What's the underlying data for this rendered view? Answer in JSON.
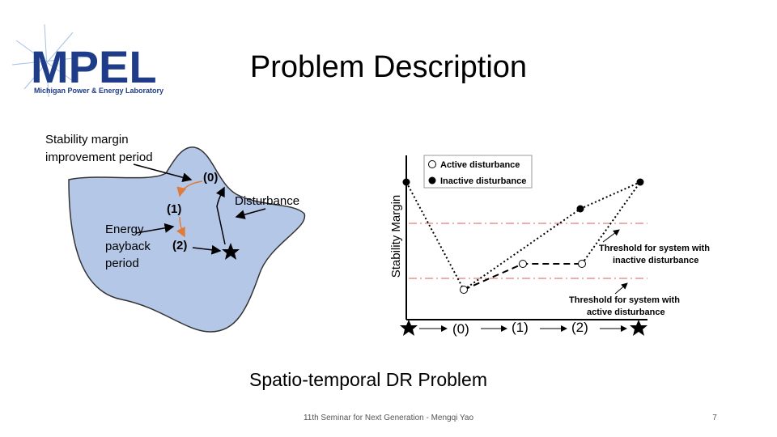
{
  "logo": {
    "name": "MPEL",
    "subtitle": "Michigan Power & Energy Laboratory"
  },
  "title": "Problem Description",
  "left_diagram": {
    "improvement_label": [
      "Stability margin",
      "improvement period"
    ],
    "states": [
      "(0)",
      "(1)",
      "(2)"
    ],
    "disturbance_label": "Disturbance",
    "payback_label": [
      "Energy",
      "payback",
      "period"
    ]
  },
  "right_diagram": {
    "y_label": "Stability Margin",
    "legend": [
      "Active disturbance",
      "Inactive disturbance"
    ],
    "threshold_inactive": [
      "Threshold for system with",
      "inactive disturbance"
    ],
    "threshold_active": [
      "Threshold for system with",
      "active disturbance"
    ],
    "states": [
      "(0)",
      "(1)",
      "(2)"
    ]
  },
  "caption": "Spatio-temporal DR Problem",
  "footer": {
    "text": "11th Seminar for Next Generation - Mengqi Yao",
    "page": "7"
  }
}
